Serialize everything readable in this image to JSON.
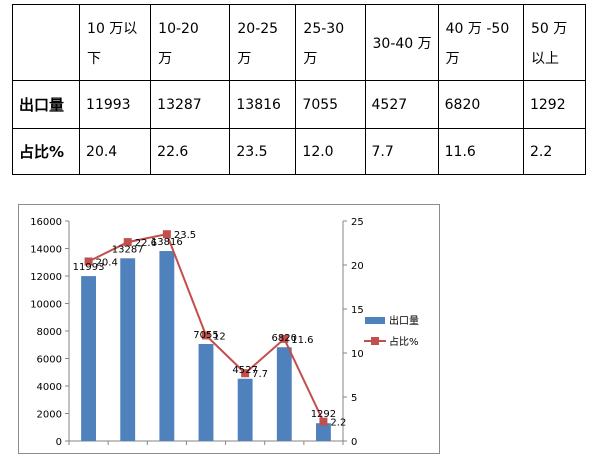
{
  "table": {
    "corner": "",
    "columns": [
      [
        "10 万以下"
      ],
      [
        "10-20",
        "万"
      ],
      [
        "20-25",
        "万"
      ],
      [
        "25-30",
        "万"
      ],
      [
        "30-40 万"
      ],
      [
        "40  万  -50",
        "万"
      ],
      [
        "50 万",
        "以上"
      ]
    ],
    "rows": [
      {
        "label": "出口量",
        "cells": [
          "11993",
          "13287",
          "13816",
          "7055",
          "4527",
          "6820",
          "1292"
        ]
      },
      {
        "label": "占比%",
        "cells": [
          "20.4",
          "22.6",
          "23.5",
          "12.0",
          "7.7",
          "11.6",
          "2.2"
        ]
      }
    ]
  },
  "chart_data": {
    "type": "bar",
    "categories": [
      "",
      "",
      "",
      "",
      "",
      "",
      ""
    ],
    "series": [
      {
        "name": "出口量",
        "kind": "bar",
        "axis": "left",
        "color": "#4f81bd",
        "values": [
          11993,
          13287,
          13816,
          7055,
          4527,
          6820,
          1292
        ],
        "labels": [
          "11993",
          "13287",
          "13816",
          "7055",
          "4527",
          "6820",
          "1292"
        ]
      },
      {
        "name": "占比%",
        "kind": "line",
        "axis": "right",
        "color": "#c0504d",
        "values": [
          20.4,
          22.6,
          23.5,
          12.0,
          7.7,
          11.6,
          2.2
        ],
        "labels": [
          "20.4",
          "22.6",
          "23.5",
          "12",
          "7.7",
          "11.6",
          "2.2"
        ]
      }
    ],
    "y_left": {
      "min": 0,
      "max": 16000,
      "ticks": [
        "0",
        "2000",
        "4000",
        "6000",
        "8000",
        "10000",
        "12000",
        "14000",
        "16000"
      ]
    },
    "y_right": {
      "min": 0,
      "max": 25,
      "ticks": [
        "0",
        "5",
        "10",
        "15",
        "20",
        "25"
      ]
    },
    "legend": "right",
    "grid": false,
    "title": "",
    "xlabel": "",
    "ylabel": ""
  }
}
